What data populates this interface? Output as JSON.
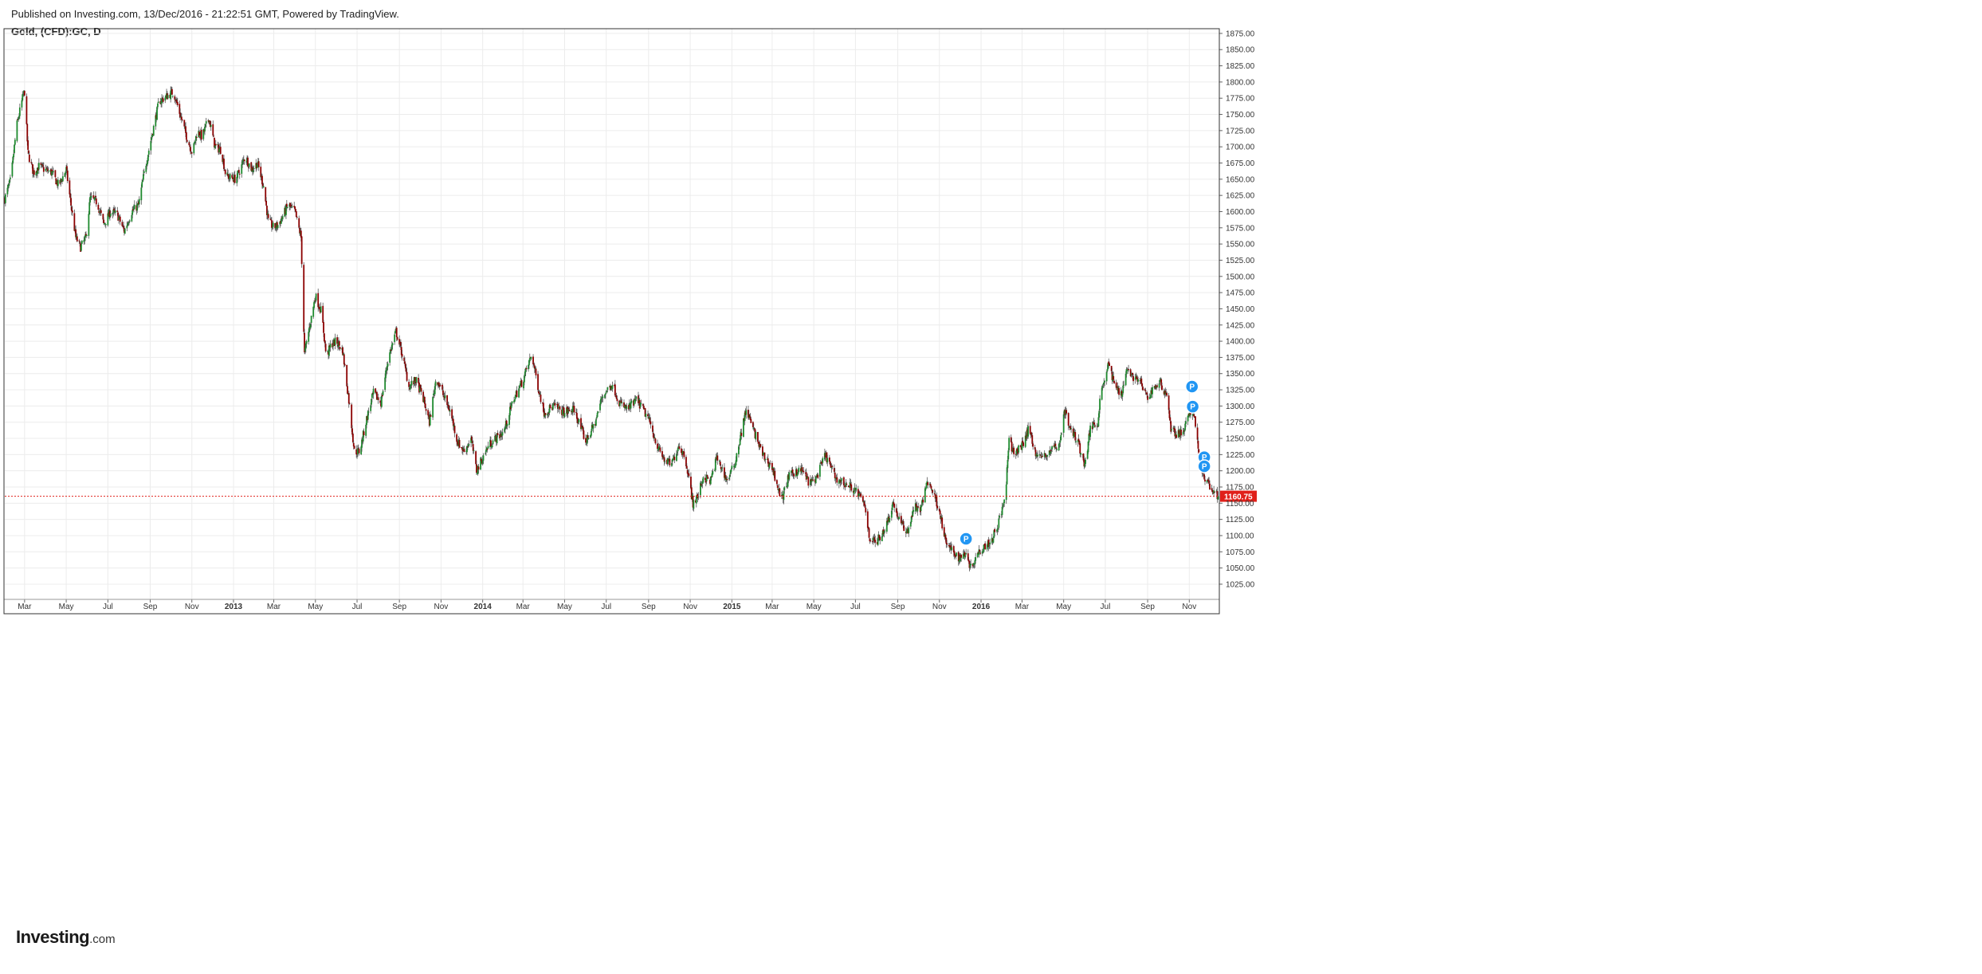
{
  "header": {
    "published": "Published on Investing.com, 13/Dec/2016 - 21:22:51 GMT, Powered by TradingView.",
    "symbol": "Gold, (CFD):GC, D"
  },
  "logo": {
    "main": "Investing",
    "suffix": ".com"
  },
  "colors": {
    "up": "#1e8a2e",
    "down": "#8b0000",
    "wick": "#555555",
    "price_line": "#e0201a",
    "grid": "#ececec",
    "marker": "#2196f3",
    "frame": "#333333"
  },
  "chart_data": {
    "type": "candlestick",
    "title": "Gold, (CFD):GC, D",
    "ylim": [
      1001.56,
      1882.27
    ],
    "yticks": [
      1025,
      1050,
      1075,
      1100,
      1125,
      1150,
      1175,
      1200,
      1225,
      1250,
      1275,
      1300,
      1325,
      1350,
      1375,
      1400,
      1425,
      1450,
      1475,
      1500,
      1525,
      1550,
      1575,
      1600,
      1625,
      1650,
      1675,
      1700,
      1725,
      1750,
      1775,
      1800,
      1825,
      1850,
      1875
    ],
    "ytick_labels": [
      "1025.00",
      "1050.00",
      "1075.00",
      "1100.00",
      "1125.00",
      "1150.00",
      "1175.00",
      "1200.00",
      "1225.00",
      "1250.00",
      "1275.00",
      "1300.00",
      "1325.00",
      "1350.00",
      "1375.00",
      "1400.00",
      "1425.00",
      "1450.00",
      "1475.00",
      "1500.00",
      "1525.00",
      "1550.00",
      "1575.00",
      "1600.00",
      "1625.00",
      "1650.00",
      "1675.00",
      "1700.00",
      "1725.00",
      "1750.00",
      "1775.00",
      "1800.00",
      "1825.00",
      "1850.00",
      "1875.00"
    ],
    "xlim": [
      "2012-02-01",
      "2016-12-15"
    ],
    "xticks": [
      {
        "date": "2012-03-01",
        "label": "Mar",
        "bold": false
      },
      {
        "date": "2012-05-01",
        "label": "May",
        "bold": false
      },
      {
        "date": "2012-07-01",
        "label": "Jul",
        "bold": false
      },
      {
        "date": "2012-09-01",
        "label": "Sep",
        "bold": false
      },
      {
        "date": "2012-11-01",
        "label": "Nov",
        "bold": false
      },
      {
        "date": "2013-01-01",
        "label": "2013",
        "bold": true
      },
      {
        "date": "2013-03-01",
        "label": "Mar",
        "bold": false
      },
      {
        "date": "2013-05-01",
        "label": "May",
        "bold": false
      },
      {
        "date": "2013-07-01",
        "label": "Jul",
        "bold": false
      },
      {
        "date": "2013-09-01",
        "label": "Sep",
        "bold": false
      },
      {
        "date": "2013-11-01",
        "label": "Nov",
        "bold": false
      },
      {
        "date": "2014-01-01",
        "label": "2014",
        "bold": true
      },
      {
        "date": "2014-03-01",
        "label": "Mar",
        "bold": false
      },
      {
        "date": "2014-05-01",
        "label": "May",
        "bold": false
      },
      {
        "date": "2014-07-01",
        "label": "Jul",
        "bold": false
      },
      {
        "date": "2014-09-01",
        "label": "Sep",
        "bold": false
      },
      {
        "date": "2014-11-01",
        "label": "Nov",
        "bold": false
      },
      {
        "date": "2015-01-01",
        "label": "2015",
        "bold": true
      },
      {
        "date": "2015-03-01",
        "label": "Mar",
        "bold": false
      },
      {
        "date": "2015-05-01",
        "label": "May",
        "bold": false
      },
      {
        "date": "2015-07-01",
        "label": "Jul",
        "bold": false
      },
      {
        "date": "2015-09-01",
        "label": "Sep",
        "bold": false
      },
      {
        "date": "2015-11-01",
        "label": "Nov",
        "bold": false
      },
      {
        "date": "2016-01-01",
        "label": "2016",
        "bold": true
      },
      {
        "date": "2016-03-01",
        "label": "Mar",
        "bold": false
      },
      {
        "date": "2016-05-01",
        "label": "May",
        "bold": false
      },
      {
        "date": "2016-07-01",
        "label": "Jul",
        "bold": false
      },
      {
        "date": "2016-09-01",
        "label": "Sep",
        "bold": false
      },
      {
        "date": "2016-11-01",
        "label": "Nov",
        "bold": false
      }
    ],
    "last_price": 1160.75,
    "last_price_label": "1160.75",
    "price_path": [
      [
        "2012-02-01",
        1620
      ],
      [
        "2012-02-10",
        1650
      ],
      [
        "2012-02-18",
        1730
      ],
      [
        "2012-02-24",
        1760
      ],
      [
        "2012-02-28",
        1780
      ],
      [
        "2012-03-01",
        1785
      ],
      [
        "2012-03-06",
        1690
      ],
      [
        "2012-03-14",
        1660
      ],
      [
        "2012-03-22",
        1670
      ],
      [
        "2012-03-30",
        1665
      ],
      [
        "2012-04-10",
        1660
      ],
      [
        "2012-04-20",
        1640
      ],
      [
        "2012-05-01",
        1665
      ],
      [
        "2012-05-08",
        1610
      ],
      [
        "2012-05-15",
        1560
      ],
      [
        "2012-05-22",
        1545
      ],
      [
        "2012-05-30",
        1560
      ],
      [
        "2012-06-05",
        1620
      ],
      [
        "2012-06-15",
        1615
      ],
      [
        "2012-06-25",
        1580
      ],
      [
        "2012-07-05",
        1600
      ],
      [
        "2012-07-15",
        1595
      ],
      [
        "2012-07-25",
        1570
      ],
      [
        "2012-08-05",
        1600
      ],
      [
        "2012-08-15",
        1610
      ],
      [
        "2012-08-24",
        1665
      ],
      [
        "2012-09-07",
        1735
      ],
      [
        "2012-09-14",
        1770
      ],
      [
        "2012-09-21",
        1775
      ],
      [
        "2012-10-05",
        1785
      ],
      [
        "2012-10-12",
        1760
      ],
      [
        "2012-10-19",
        1735
      ],
      [
        "2012-10-26",
        1710
      ],
      [
        "2012-11-02",
        1690
      ],
      [
        "2012-11-09",
        1725
      ],
      [
        "2012-11-16",
        1715
      ],
      [
        "2012-11-26",
        1745
      ],
      [
        "2012-12-05",
        1700
      ],
      [
        "2012-12-14",
        1695
      ],
      [
        "2012-12-21",
        1655
      ],
      [
        "2013-01-04",
        1650
      ],
      [
        "2013-01-11",
        1665
      ],
      [
        "2013-01-18",
        1685
      ],
      [
        "2013-01-28",
        1665
      ],
      [
        "2013-02-05",
        1675
      ],
      [
        "2013-02-14",
        1640
      ],
      [
        "2013-02-21",
        1585
      ],
      [
        "2013-03-01",
        1575
      ],
      [
        "2013-03-08",
        1580
      ],
      [
        "2013-03-15",
        1595
      ],
      [
        "2013-03-22",
        1610
      ],
      [
        "2013-04-01",
        1600
      ],
      [
        "2013-04-10",
        1560
      ],
      [
        "2013-04-15",
        1380
      ],
      [
        "2013-04-22",
        1420
      ],
      [
        "2013-05-01",
        1470
      ],
      [
        "2013-05-10",
        1445
      ],
      [
        "2013-05-17",
        1375
      ],
      [
        "2013-05-24",
        1395
      ],
      [
        "2013-06-01",
        1400
      ],
      [
        "2013-06-10",
        1385
      ],
      [
        "2013-06-20",
        1300
      ],
      [
        "2013-06-27",
        1230
      ],
      [
        "2013-07-05",
        1230
      ],
      [
        "2013-07-15",
        1280
      ],
      [
        "2013-07-25",
        1320
      ],
      [
        "2013-08-05",
        1305
      ],
      [
        "2013-08-15",
        1370
      ],
      [
        "2013-08-27",
        1415
      ],
      [
        "2013-09-05",
        1380
      ],
      [
        "2013-09-15",
        1330
      ],
      [
        "2013-09-25",
        1340
      ],
      [
        "2013-10-05",
        1315
      ],
      [
        "2013-10-15",
        1275
      ],
      [
        "2013-10-25",
        1345
      ],
      [
        "2013-11-05",
        1315
      ],
      [
        "2013-11-15",
        1290
      ],
      [
        "2013-11-25",
        1245
      ],
      [
        "2013-12-05",
        1230
      ],
      [
        "2013-12-15",
        1250
      ],
      [
        "2013-12-23",
        1200
      ],
      [
        "2014-01-01",
        1220
      ],
      [
        "2014-01-10",
        1240
      ],
      [
        "2014-01-20",
        1250
      ],
      [
        "2014-02-01",
        1260
      ],
      [
        "2014-02-15",
        1310
      ],
      [
        "2014-03-01",
        1340
      ],
      [
        "2014-03-14",
        1380
      ],
      [
        "2014-03-22",
        1335
      ],
      [
        "2014-04-01",
        1290
      ],
      [
        "2014-04-15",
        1300
      ],
      [
        "2014-05-01",
        1290
      ],
      [
        "2014-05-15",
        1295
      ],
      [
        "2014-06-01",
        1245
      ],
      [
        "2014-06-15",
        1275
      ],
      [
        "2014-06-25",
        1315
      ],
      [
        "2014-07-10",
        1335
      ],
      [
        "2014-07-20",
        1305
      ],
      [
        "2014-08-01",
        1295
      ],
      [
        "2014-08-15",
        1310
      ],
      [
        "2014-09-01",
        1280
      ],
      [
        "2014-09-15",
        1235
      ],
      [
        "2014-09-25",
        1215
      ],
      [
        "2014-10-05",
        1210
      ],
      [
        "2014-10-15",
        1240
      ],
      [
        "2014-10-25",
        1220
      ],
      [
        "2014-11-05",
        1150
      ],
      [
        "2014-11-12",
        1160
      ],
      [
        "2014-11-20",
        1190
      ],
      [
        "2014-12-01",
        1185
      ],
      [
        "2014-12-10",
        1220
      ],
      [
        "2014-12-25",
        1185
      ],
      [
        "2015-01-05",
        1210
      ],
      [
        "2015-01-15",
        1260
      ],
      [
        "2015-01-22",
        1295
      ],
      [
        "2015-02-01",
        1265
      ],
      [
        "2015-02-15",
        1225
      ],
      [
        "2015-03-01",
        1205
      ],
      [
        "2015-03-15",
        1155
      ],
      [
        "2015-03-25",
        1190
      ],
      [
        "2015-04-05",
        1200
      ],
      [
        "2015-04-15",
        1200
      ],
      [
        "2015-04-25",
        1180
      ],
      [
        "2015-05-05",
        1190
      ],
      [
        "2015-05-18",
        1225
      ],
      [
        "2015-06-01",
        1190
      ],
      [
        "2015-06-15",
        1180
      ],
      [
        "2015-06-25",
        1175
      ],
      [
        "2015-07-05",
        1165
      ],
      [
        "2015-07-15",
        1145
      ],
      [
        "2015-07-22",
        1095
      ],
      [
        "2015-08-01",
        1090
      ],
      [
        "2015-08-15",
        1115
      ],
      [
        "2015-08-25",
        1150
      ],
      [
        "2015-09-05",
        1120
      ],
      [
        "2015-09-15",
        1105
      ],
      [
        "2015-09-25",
        1145
      ],
      [
        "2015-10-05",
        1140
      ],
      [
        "2015-10-14",
        1185
      ],
      [
        "2015-10-22",
        1170
      ],
      [
        "2015-11-01",
        1140
      ],
      [
        "2015-11-10",
        1090
      ],
      [
        "2015-11-20",
        1075
      ],
      [
        "2015-12-01",
        1065
      ],
      [
        "2015-12-10",
        1075
      ],
      [
        "2015-12-17",
        1050
      ],
      [
        "2015-12-25",
        1070
      ],
      [
        "2016-01-05",
        1085
      ],
      [
        "2016-01-15",
        1090
      ],
      [
        "2016-01-25",
        1115
      ],
      [
        "2016-02-05",
        1155
      ],
      [
        "2016-02-11",
        1245
      ],
      [
        "2016-02-20",
        1225
      ],
      [
        "2016-03-01",
        1240
      ],
      [
        "2016-03-11",
        1265
      ],
      [
        "2016-03-22",
        1225
      ],
      [
        "2016-04-01",
        1220
      ],
      [
        "2016-04-15",
        1235
      ],
      [
        "2016-04-25",
        1240
      ],
      [
        "2016-05-02",
        1295
      ],
      [
        "2016-05-10",
        1265
      ],
      [
        "2016-05-20",
        1250
      ],
      [
        "2016-06-01",
        1210
      ],
      [
        "2016-06-10",
        1270
      ],
      [
        "2016-06-20",
        1275
      ],
      [
        "2016-06-24",
        1320
      ],
      [
        "2016-07-06",
        1365
      ],
      [
        "2016-07-15",
        1330
      ],
      [
        "2016-07-25",
        1320
      ],
      [
        "2016-08-02",
        1360
      ],
      [
        "2016-08-10",
        1345
      ],
      [
        "2016-08-20",
        1340
      ],
      [
        "2016-09-01",
        1310
      ],
      [
        "2016-09-10",
        1330
      ],
      [
        "2016-09-20",
        1335
      ],
      [
        "2016-09-30",
        1315
      ],
      [
        "2016-10-05",
        1265
      ],
      [
        "2016-10-15",
        1255
      ],
      [
        "2016-10-25",
        1265
      ],
      [
        "2016-11-01",
        1285
      ],
      [
        "2016-11-08",
        1290
      ],
      [
        "2016-11-15",
        1225
      ],
      [
        "2016-11-24",
        1185
      ],
      [
        "2016-12-01",
        1175
      ],
      [
        "2016-12-08",
        1170
      ],
      [
        "2016-12-13",
        1160.75
      ]
    ],
    "markers": [
      {
        "date": "2015-12-10",
        "price": 1095,
        "label": "P"
      },
      {
        "date": "2016-11-05",
        "price": 1330,
        "label": "P"
      },
      {
        "date": "2016-11-06",
        "price": 1299,
        "label": "P"
      },
      {
        "date": "2016-11-23",
        "price": 1221,
        "label": "P"
      },
      {
        "date": "2016-11-23",
        "price": 1207,
        "label": "P"
      }
    ]
  }
}
